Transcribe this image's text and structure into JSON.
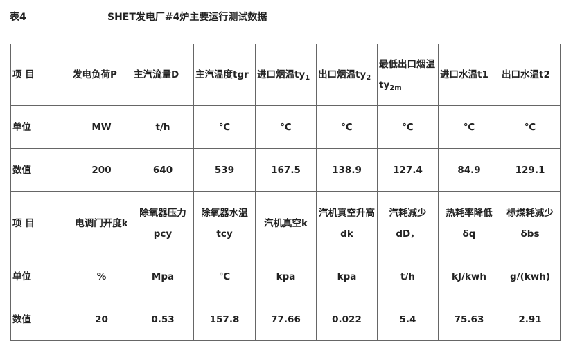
{
  "caption": {
    "label": "表4",
    "title": "SHET发电厂#4炉主要运行测试数据"
  },
  "table1": {
    "header": [
      {
        "t": "项 目"
      },
      {
        "t": "发电负荷P"
      },
      {
        "t": "主汽流量D"
      },
      {
        "t": "主汽温度tgr"
      },
      {
        "t": "进口烟温ty",
        "sub": "1"
      },
      {
        "t": "出口烟温ty",
        "sub": "2"
      },
      {
        "t": "最低出口烟温ty",
        "sub": "2m"
      },
      {
        "t": "进口水温t1"
      },
      {
        "t": "出口水温t2"
      }
    ],
    "units": [
      "单位",
      "MW",
      "t/h",
      "℃",
      "℃",
      "℃",
      "℃",
      "℃",
      "℃"
    ],
    "values": [
      "数值",
      "200",
      "640",
      "539",
      "167.5",
      "138.9",
      "127.4",
      "84.9",
      "129.1"
    ]
  },
  "table2": {
    "header": [
      "项 目",
      "电调门开度k",
      "除氧器压力pcy",
      "除氧器水温tcy",
      "汽机真空k",
      "汽机真空升高dk",
      "汽耗减少dD，",
      "热耗率降低δq",
      "标煤耗减少δbs"
    ],
    "units": [
      "单位",
      "%",
      "Mpa",
      "℃",
      "kpa",
      "kpa",
      "t/h",
      "kJ/kwh",
      "g/(kwh)"
    ],
    "values": [
      "数值",
      "20",
      "0.53",
      "157.8",
      "77.66",
      "0.022",
      "5.4",
      "75.63",
      "2.91"
    ]
  }
}
